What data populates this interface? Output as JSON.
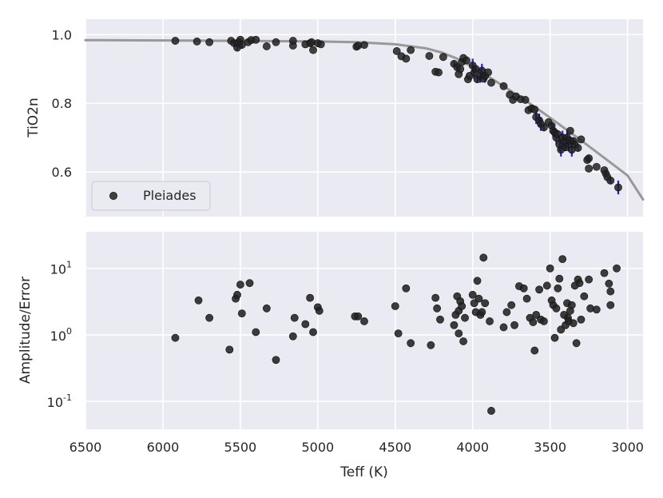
{
  "chart_data": [
    {
      "type": "scatter",
      "panel": "top",
      "xlabel": "",
      "ylabel": "TiO2n",
      "xlim": [
        6500,
        2900
      ],
      "ylim": [
        0.47,
        1.045
      ],
      "x_ticks": [
        6500,
        6000,
        5500,
        5000,
        4500,
        4000,
        3500,
        3000
      ],
      "y_ticks": [
        0.6,
        0.8,
        1.0
      ],
      "y_tick_labels": [
        "0.6",
        "0.8",
        "1.0"
      ],
      "grid": true,
      "legend": {
        "position": "lower-left",
        "entries": [
          "Pleiades"
        ]
      },
      "series": [
        {
          "name": "Pleiades",
          "marker_color": "#222222",
          "errorbar_color": "#1f1fdc",
          "points": [
            [
              5920,
              0.982,
              0
            ],
            [
              5780,
              0.98,
              0
            ],
            [
              5700,
              0.978,
              0
            ],
            [
              5560,
              0.982,
              0
            ],
            [
              5540,
              0.975,
              0.01
            ],
            [
              5520,
              0.962,
              0.01
            ],
            [
              5510,
              0.978,
              0
            ],
            [
              5500,
              0.985,
              0
            ],
            [
              5490,
              0.97,
              0.01
            ],
            [
              5450,
              0.978,
              0
            ],
            [
              5430,
              0.984,
              0
            ],
            [
              5400,
              0.985,
              0
            ],
            [
              5330,
              0.966,
              0
            ],
            [
              5270,
              0.978,
              0
            ],
            [
              5160,
              0.968,
              0
            ],
            [
              5160,
              0.982,
              0
            ],
            [
              5080,
              0.972,
              0
            ],
            [
              5050,
              0.975,
              0
            ],
            [
              5040,
              0.978,
              0
            ],
            [
              5030,
              0.955,
              0
            ],
            [
              5000,
              0.975,
              0
            ],
            [
              4980,
              0.972,
              0
            ],
            [
              4750,
              0.965,
              0
            ],
            [
              4740,
              0.968,
              0
            ],
            [
              4700,
              0.97,
              0
            ],
            [
              4490,
              0.952,
              0
            ],
            [
              4460,
              0.937,
              0
            ],
            [
              4430,
              0.93,
              0
            ],
            [
              4400,
              0.955,
              0
            ],
            [
              4280,
              0.938,
              0
            ],
            [
              4240,
              0.892,
              0
            ],
            [
              4220,
              0.89,
              0
            ],
            [
              4190,
              0.935,
              0
            ],
            [
              4120,
              0.915,
              0.01
            ],
            [
              4100,
              0.905,
              0.01
            ],
            [
              4090,
              0.885,
              0
            ],
            [
              4080,
              0.9,
              0
            ],
            [
              4070,
              0.92,
              0
            ],
            [
              4060,
              0.932,
              0
            ],
            [
              4040,
              0.925,
              0
            ],
            [
              4030,
              0.87,
              0
            ],
            [
              4020,
              0.88,
              0
            ],
            [
              4000,
              0.91,
              0.02
            ],
            [
              3990,
              0.89,
              0.02
            ],
            [
              3980,
              0.9,
              0.01
            ],
            [
              3970,
              0.87,
              0.01
            ],
            [
              3950,
              0.88,
              0.02
            ],
            [
              3940,
              0.895,
              0.02
            ],
            [
              3930,
              0.872,
              0
            ],
            [
              3920,
              0.88,
              0.02
            ],
            [
              3900,
              0.89,
              0
            ],
            [
              3880,
              0.86,
              0
            ],
            [
              3800,
              0.85,
              0
            ],
            [
              3760,
              0.825,
              0
            ],
            [
              3740,
              0.81,
              0
            ],
            [
              3720,
              0.82,
              0
            ],
            [
              3690,
              0.812,
              0
            ],
            [
              3660,
              0.81,
              0
            ],
            [
              3640,
              0.78,
              0
            ],
            [
              3620,
              0.785,
              0.01
            ],
            [
              3600,
              0.782,
              0
            ],
            [
              3590,
              0.76,
              0.02
            ],
            [
              3570,
              0.75,
              0.02
            ],
            [
              3560,
              0.74,
              0.02
            ],
            [
              3540,
              0.73,
              0.01
            ],
            [
              3510,
              0.745,
              0
            ],
            [
              3490,
              0.735,
              0.01
            ],
            [
              3480,
              0.72,
              0.02
            ],
            [
              3470,
              0.715,
              0.01
            ],
            [
              3460,
              0.7,
              0.02
            ],
            [
              3450,
              0.71,
              0.01
            ],
            [
              3440,
              0.68,
              0.02
            ],
            [
              3430,
              0.665,
              0.02
            ],
            [
              3420,
              0.7,
              0.02
            ],
            [
              3410,
              0.69,
              0.02
            ],
            [
              3400,
              0.672,
              0.01
            ],
            [
              3390,
              0.7,
              0.02
            ],
            [
              3380,
              0.68,
              0.02
            ],
            [
              3375,
              0.692,
              0.01
            ],
            [
              3370,
              0.72,
              0
            ],
            [
              3360,
              0.665,
              0.02
            ],
            [
              3350,
              0.69,
              0.01
            ],
            [
              3340,
              0.68,
              0.01
            ],
            [
              3320,
              0.67,
              0.01
            ],
            [
              3300,
              0.695,
              0
            ],
            [
              3260,
              0.635,
              0
            ],
            [
              3250,
              0.64,
              0.01
            ],
            [
              3250,
              0.61,
              0
            ],
            [
              3200,
              0.615,
              0
            ],
            [
              3150,
              0.605,
              0
            ],
            [
              3140,
              0.595,
              0.01
            ],
            [
              3130,
              0.585,
              0
            ],
            [
              3110,
              0.575,
              0.01
            ],
            [
              3060,
              0.555,
              0.02
            ]
          ]
        },
        {
          "name": "",
          "kind": "line",
          "color": "#999999",
          "x": [
            6500,
            6000,
            5500,
            5000,
            4750,
            4500,
            4300,
            4200,
            4100,
            4000,
            3900,
            3800,
            3700,
            3600,
            3500,
            3400,
            3300,
            3200,
            3100,
            3000,
            2900
          ],
          "y": [
            0.984,
            0.983,
            0.982,
            0.98,
            0.978,
            0.972,
            0.96,
            0.948,
            0.93,
            0.906,
            0.878,
            0.85,
            0.82,
            0.79,
            0.758,
            0.725,
            0.692,
            0.658,
            0.624,
            0.59,
            0.52
          ]
        }
      ]
    },
    {
      "type": "scatter",
      "panel": "bottom",
      "xlabel": "Teff (K)",
      "ylabel": "Amplitude/Error",
      "xlim": [
        6500,
        2900
      ],
      "ylim_log10": [
        -1.42,
        1.55
      ],
      "y_scale": "log",
      "x_ticks": [
        6500,
        6000,
        5500,
        5000,
        4500,
        4000,
        3500,
        3000
      ],
      "y_tick_exponents": [
        -1,
        0,
        1
      ],
      "grid": true,
      "series": [
        {
          "marker_color": "#222222",
          "points": [
            [
              5920,
              0.9
            ],
            [
              5770,
              3.3
            ],
            [
              5700,
              1.8
            ],
            [
              5570,
              0.6
            ],
            [
              5530,
              3.5
            ],
            [
              5520,
              4.0
            ],
            [
              5500,
              5.7
            ],
            [
              5490,
              2.1
            ],
            [
              5440,
              6.0
            ],
            [
              5400,
              1.1
            ],
            [
              5330,
              2.5
            ],
            [
              5270,
              0.42
            ],
            [
              5160,
              0.95
            ],
            [
              5150,
              1.8
            ],
            [
              5080,
              1.45
            ],
            [
              5050,
              3.6
            ],
            [
              5030,
              1.1
            ],
            [
              5000,
              2.6
            ],
            [
              4990,
              2.3
            ],
            [
              4760,
              1.9
            ],
            [
              4740,
              1.9
            ],
            [
              4700,
              1.6
            ],
            [
              4500,
              2.7
            ],
            [
              4480,
              1.05
            ],
            [
              4430,
              5.0
            ],
            [
              4400,
              0.75
            ],
            [
              4270,
              0.7
            ],
            [
              4240,
              3.6
            ],
            [
              4230,
              2.5
            ],
            [
              4210,
              1.7
            ],
            [
              4120,
              1.4
            ],
            [
              4110,
              2.0
            ],
            [
              4100,
              3.8
            ],
            [
              4090,
              2.3
            ],
            [
              4090,
              1.05
            ],
            [
              4080,
              3.2
            ],
            [
              4070,
              2.7
            ],
            [
              4060,
              0.8
            ],
            [
              4050,
              1.8
            ],
            [
              4000,
              4.0
            ],
            [
              3990,
              3.0
            ],
            [
              3980,
              2.2
            ],
            [
              3970,
              6.5
            ],
            [
              3960,
              3.5
            ],
            [
              3950,
              2.0
            ],
            [
              3940,
              2.2
            ],
            [
              3930,
              14.5
            ],
            [
              3920,
              3.0
            ],
            [
              3890,
              1.6
            ],
            [
              3880,
              0.072
            ],
            [
              3800,
              1.3
            ],
            [
              3780,
              2.2
            ],
            [
              3750,
              2.8
            ],
            [
              3730,
              1.4
            ],
            [
              3700,
              5.4
            ],
            [
              3670,
              5.0
            ],
            [
              3650,
              3.5
            ],
            [
              3630,
              1.8
            ],
            [
              3610,
              1.55
            ],
            [
              3600,
              0.58
            ],
            [
              3590,
              2.0
            ],
            [
              3570,
              4.8
            ],
            [
              3560,
              1.7
            ],
            [
              3540,
              1.6
            ],
            [
              3520,
              5.5
            ],
            [
              3500,
              10.0
            ],
            [
              3490,
              3.3
            ],
            [
              3480,
              2.8
            ],
            [
              3470,
              0.9
            ],
            [
              3460,
              2.5
            ],
            [
              3450,
              5.0
            ],
            [
              3440,
              7.0
            ],
            [
              3430,
              1.2
            ],
            [
              3420,
              13.8
            ],
            [
              3410,
              2.0
            ],
            [
              3400,
              1.4
            ],
            [
              3390,
              3.0
            ],
            [
              3385,
              1.8
            ],
            [
              3380,
              1.6
            ],
            [
              3370,
              2.3
            ],
            [
              3360,
              2.8
            ],
            [
              3350,
              1.5
            ],
            [
              3340,
              5.5
            ],
            [
              3330,
              0.75
            ],
            [
              3320,
              6.8
            ],
            [
              3310,
              6.0
            ],
            [
              3300,
              1.7
            ],
            [
              3280,
              3.8
            ],
            [
              3250,
              6.8
            ],
            [
              3240,
              2.5
            ],
            [
              3200,
              2.4
            ],
            [
              3150,
              8.5
            ],
            [
              3120,
              5.9
            ],
            [
              3110,
              4.5
            ],
            [
              3110,
              2.8
            ],
            [
              3070,
              10.0
            ]
          ]
        }
      ]
    }
  ]
}
